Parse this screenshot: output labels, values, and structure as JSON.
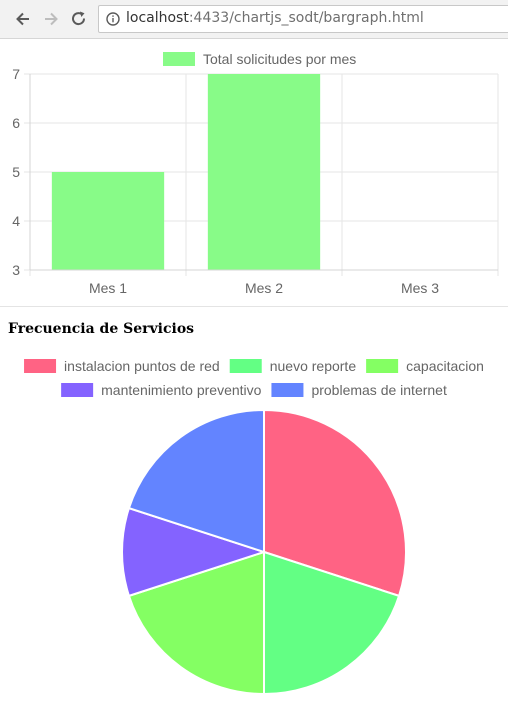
{
  "browser": {
    "url_host": "localhost",
    "url_rest": ":4433/chartjs_sodt/bargraph.html"
  },
  "colors": {
    "bar": "#88fb88",
    "grid": "#e6e6e6",
    "tick": "#666666"
  },
  "section_title": "Frecuencia de Servicios",
  "chart_data": [
    {
      "type": "bar",
      "categories": [
        "Mes 1",
        "Mes 2",
        "Mes 3"
      ],
      "series": [
        {
          "name": "Total solicitudes por mes",
          "values": [
            5,
            7,
            null
          ],
          "color": "#88fb88"
        }
      ],
      "ylim": [
        3,
        7
      ],
      "yticks": [
        3,
        4,
        5,
        6,
        7
      ],
      "grid": true,
      "legend": "top"
    },
    {
      "type": "pie",
      "labels": [
        "instalacion puntos de red",
        "nuevo reporte",
        "capacitacion",
        "mantenimiento preventivo",
        "problemas de internet"
      ],
      "values": [
        3,
        2,
        2,
        1,
        2
      ],
      "colors": [
        "#ff6384",
        "#63ff84",
        "#84ff63",
        "#8463ff",
        "#6384ff"
      ],
      "legend": "top"
    }
  ]
}
